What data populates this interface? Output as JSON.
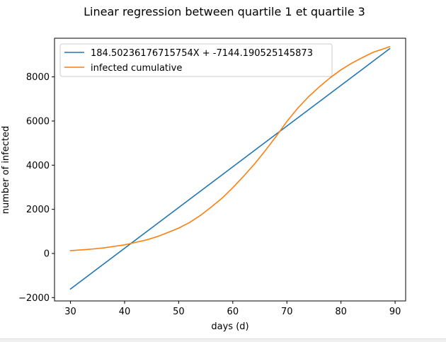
{
  "chart_data": {
    "type": "line",
    "title": "Linear regression between quartile 1 et quartile 3",
    "xlabel": "days (d)",
    "ylabel": "number of infected",
    "xlim": [
      27.05,
      91.95
    ],
    "ylim": [
      -2150,
      9750
    ],
    "xticks": [
      30,
      40,
      50,
      60,
      70,
      80,
      90
    ],
    "yticks": [
      -2000,
      0,
      2000,
      4000,
      6000,
      8000
    ],
    "legend_position": "top-left",
    "grid": false,
    "series": [
      {
        "name": "184.50236176715754X + -7144.190525145873",
        "color": "#1f77b4",
        "x": [
          30,
          89
        ],
        "y": [
          -1609.1,
          9276.5
        ]
      },
      {
        "name": "infected cumulative",
        "color": "#ff7f0e",
        "x": [
          30,
          32,
          34,
          36,
          38,
          40,
          42,
          44,
          46,
          48,
          50,
          52,
          54,
          56,
          58,
          60,
          62,
          64,
          66,
          68,
          70,
          72,
          74,
          76,
          78,
          80,
          82,
          84,
          86,
          88,
          89
        ],
        "y": [
          130,
          160,
          200,
          250,
          320,
          390,
          500,
          610,
          760,
          950,
          1150,
          1400,
          1720,
          2100,
          2500,
          2980,
          3500,
          4050,
          4660,
          5300,
          5980,
          6580,
          7100,
          7550,
          7960,
          8320,
          8620,
          8880,
          9120,
          9280,
          9370
        ]
      }
    ]
  }
}
